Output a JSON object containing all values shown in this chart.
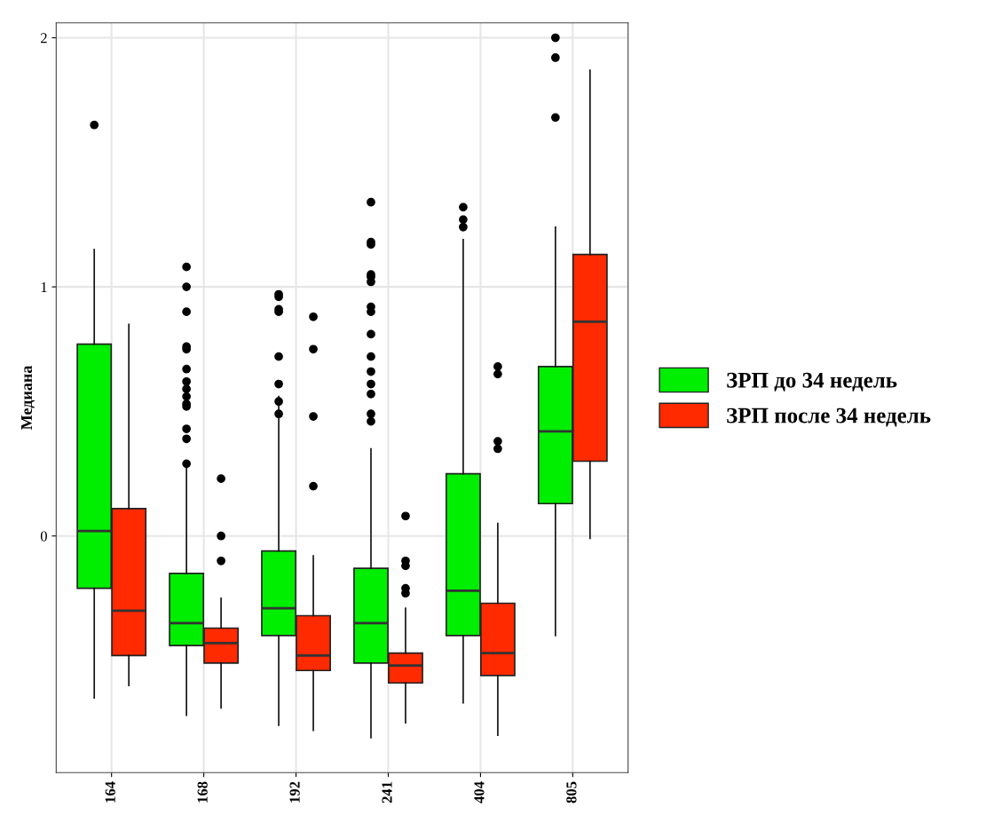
{
  "chart_data": {
    "type": "box",
    "ylabel": "Медиана",
    "categories": [
      "164",
      "168",
      "192",
      "241",
      "404",
      "805"
    ],
    "ylim": [
      -0.95,
      2.06
    ],
    "yticks": [
      0,
      1,
      2
    ],
    "grid": true,
    "legend": "right",
    "series": [
      {
        "name": "ЗРП до 34 недель",
        "color": "#00ee00",
        "boxes": [
          {
            "low": -0.65,
            "q1": -0.21,
            "median": 0.02,
            "q3": 0.77,
            "high": 1.15,
            "outliers": [
              1.65
            ]
          },
          {
            "low": -0.72,
            "q1": -0.44,
            "median": -0.35,
            "q3": -0.15,
            "high": 0.27,
            "outliers": [
              1.08,
              1.0,
              0.9,
              0.76,
              0.75,
              0.67,
              0.62,
              0.59,
              0.56,
              0.53,
              0.52,
              0.43,
              0.39,
              0.29
            ]
          },
          {
            "low": -0.76,
            "q1": -0.4,
            "median": -0.29,
            "q3": -0.06,
            "high": 0.56,
            "outliers": [
              0.97,
              0.96,
              0.91,
              0.9,
              0.72,
              0.61,
              0.54,
              0.49
            ]
          },
          {
            "low": -0.81,
            "q1": -0.51,
            "median": -0.35,
            "q3": -0.13,
            "high": 0.35,
            "outliers": [
              1.34,
              1.18,
              1.17,
              1.05,
              1.04,
              1.02,
              0.92,
              0.9,
              0.81,
              0.72,
              0.66,
              0.61,
              0.57,
              0.49,
              0.46
            ]
          },
          {
            "low": -0.67,
            "q1": -0.4,
            "median": -0.22,
            "q3": 0.25,
            "high": 1.19,
            "outliers": [
              1.32,
              1.27,
              1.24
            ]
          },
          {
            "low": -0.4,
            "q1": 0.13,
            "median": 0.42,
            "q3": 0.68,
            "high": 1.24,
            "outliers": [
              2.0,
              1.92,
              1.68
            ]
          }
        ]
      },
      {
        "name": "ЗРП после 34 недель",
        "color": "#ff2a00",
        "boxes": [
          {
            "low": -0.6,
            "q1": -0.48,
            "median": -0.3,
            "q3": 0.11,
            "high": 0.85
          },
          {
            "low": -0.69,
            "q1": -0.51,
            "median": -0.43,
            "q3": -0.37,
            "high": -0.25,
            "outliers": [
              0.23,
              0.0,
              -0.1
            ]
          },
          {
            "low": -0.78,
            "q1": -0.54,
            "median": -0.48,
            "q3": -0.32,
            "high": -0.08,
            "outliers": [
              0.88,
              0.75,
              0.48,
              0.2
            ]
          },
          {
            "low": -0.75,
            "q1": -0.59,
            "median": -0.52,
            "q3": -0.47,
            "high": -0.29,
            "outliers": [
              0.08,
              -0.1,
              -0.12,
              -0.21,
              -0.23
            ]
          },
          {
            "low": -0.8,
            "q1": -0.56,
            "median": -0.47,
            "q3": -0.27,
            "high": 0.05,
            "outliers": [
              0.68,
              0.65,
              0.38,
              0.35
            ]
          },
          {
            "low": -0.01,
            "q1": 0.3,
            "median": 0.86,
            "q3": 1.13,
            "high": 1.87
          }
        ]
      }
    ]
  }
}
